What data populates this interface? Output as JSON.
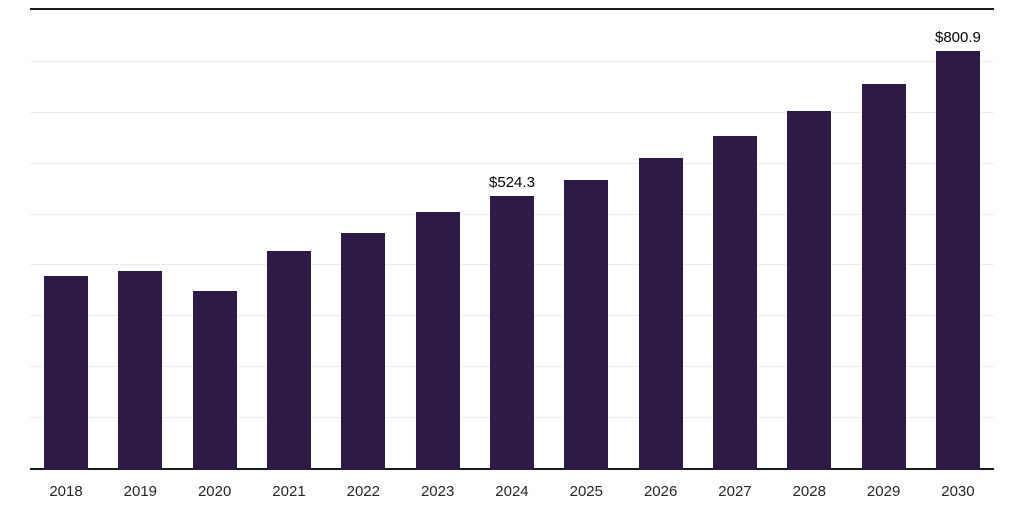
{
  "chart_data": {
    "type": "bar",
    "title": "",
    "xlabel": "",
    "ylabel": "",
    "categories": [
      "2018",
      "2019",
      "2020",
      "2021",
      "2022",
      "2023",
      "2024",
      "2025",
      "2026",
      "2027",
      "2028",
      "2029",
      "2030"
    ],
    "values": [
      370.7,
      380.2,
      342.5,
      419.0,
      453.4,
      493.6,
      524.3,
      554.8,
      597.0,
      639.1,
      687.0,
      738.6,
      800.9
    ],
    "value_labels": {
      "2024": "$524.3",
      "2030": "$800.9"
    },
    "ylim": [
      0,
      884
    ],
    "grid": true,
    "legend_position": "none",
    "colors": {
      "bar": "#2e1a47",
      "axis": "#1a1a1a",
      "gridline": "#ebebeb",
      "value_label": "#000000",
      "tick_label": "#262626",
      "background": "#ffffff"
    }
  }
}
